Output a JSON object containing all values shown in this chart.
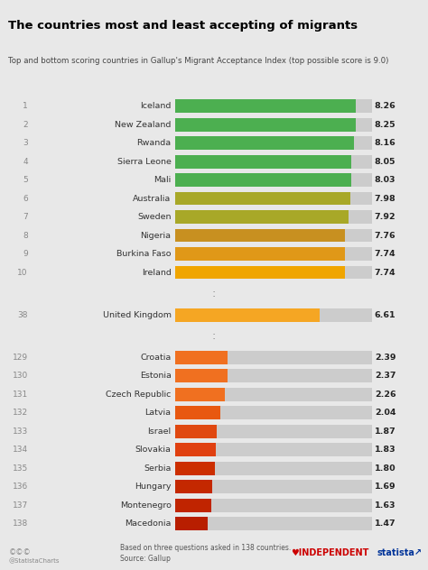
{
  "title": "The countries most and least accepting of migrants",
  "subtitle": "Top and bottom scoring countries in Gallup's Migrant Acceptance Index (top possible score is 9.0)",
  "background_color": "#e8e8e8",
  "bar_bg_color": "#cccccc",
  "rows": [
    {
      "rank": "1",
      "country": "Iceland",
      "value": 8.26,
      "color": "#4caf50"
    },
    {
      "rank": "2",
      "country": "New Zealand",
      "value": 8.25,
      "color": "#4caf50"
    },
    {
      "rank": "3",
      "country": "Rwanda",
      "value": 8.16,
      "color": "#4caf50"
    },
    {
      "rank": "4",
      "country": "Sierra Leone",
      "value": 8.05,
      "color": "#4caf50"
    },
    {
      "rank": "5",
      "country": "Mali",
      "value": 8.03,
      "color": "#4caf50"
    },
    {
      "rank": "6",
      "country": "Australia",
      "value": 7.98,
      "color": "#a8a828"
    },
    {
      "rank": "7",
      "country": "Sweden",
      "value": 7.92,
      "color": "#a8a828"
    },
    {
      "rank": "8",
      "country": "Nigeria",
      "value": 7.76,
      "color": "#c89020"
    },
    {
      "rank": "9",
      "country": "Burkina Faso",
      "value": 7.74,
      "color": "#e09818"
    },
    {
      "rank": "10",
      "country": "Ireland",
      "value": 7.74,
      "color": "#f0a500"
    },
    {
      "rank": "38",
      "country": "United Kingdom",
      "value": 6.61,
      "color": "#f5a623"
    },
    {
      "rank": "129",
      "country": "Croatia",
      "value": 2.39,
      "color": "#f07020"
    },
    {
      "rank": "130",
      "country": "Estonia",
      "value": 2.37,
      "color": "#f07020"
    },
    {
      "rank": "131",
      "country": "Czech Republic",
      "value": 2.26,
      "color": "#f07020"
    },
    {
      "rank": "132",
      "country": "Latvia",
      "value": 2.04,
      "color": "#e85810"
    },
    {
      "rank": "133",
      "country": "Israel",
      "value": 1.87,
      "color": "#e04810"
    },
    {
      "rank": "134",
      "country": "Slovakia",
      "value": 1.83,
      "color": "#e04010"
    },
    {
      "rank": "135",
      "country": "Serbia",
      "value": 1.8,
      "color": "#cc2e00"
    },
    {
      "rank": "136",
      "country": "Hungary",
      "value": 1.69,
      "color": "#c42800"
    },
    {
      "rank": "137",
      "country": "Montenegro",
      "value": 1.63,
      "color": "#c02400"
    },
    {
      "rank": "138",
      "country": "Macedonia",
      "value": 1.47,
      "color": "#b81e00"
    }
  ],
  "max_value": 9.0,
  "title_fontsize": 9.5,
  "subtitle_fontsize": 6.2,
  "label_fontsize": 6.8,
  "rank_fontsize": 6.5,
  "value_fontsize": 6.8
}
